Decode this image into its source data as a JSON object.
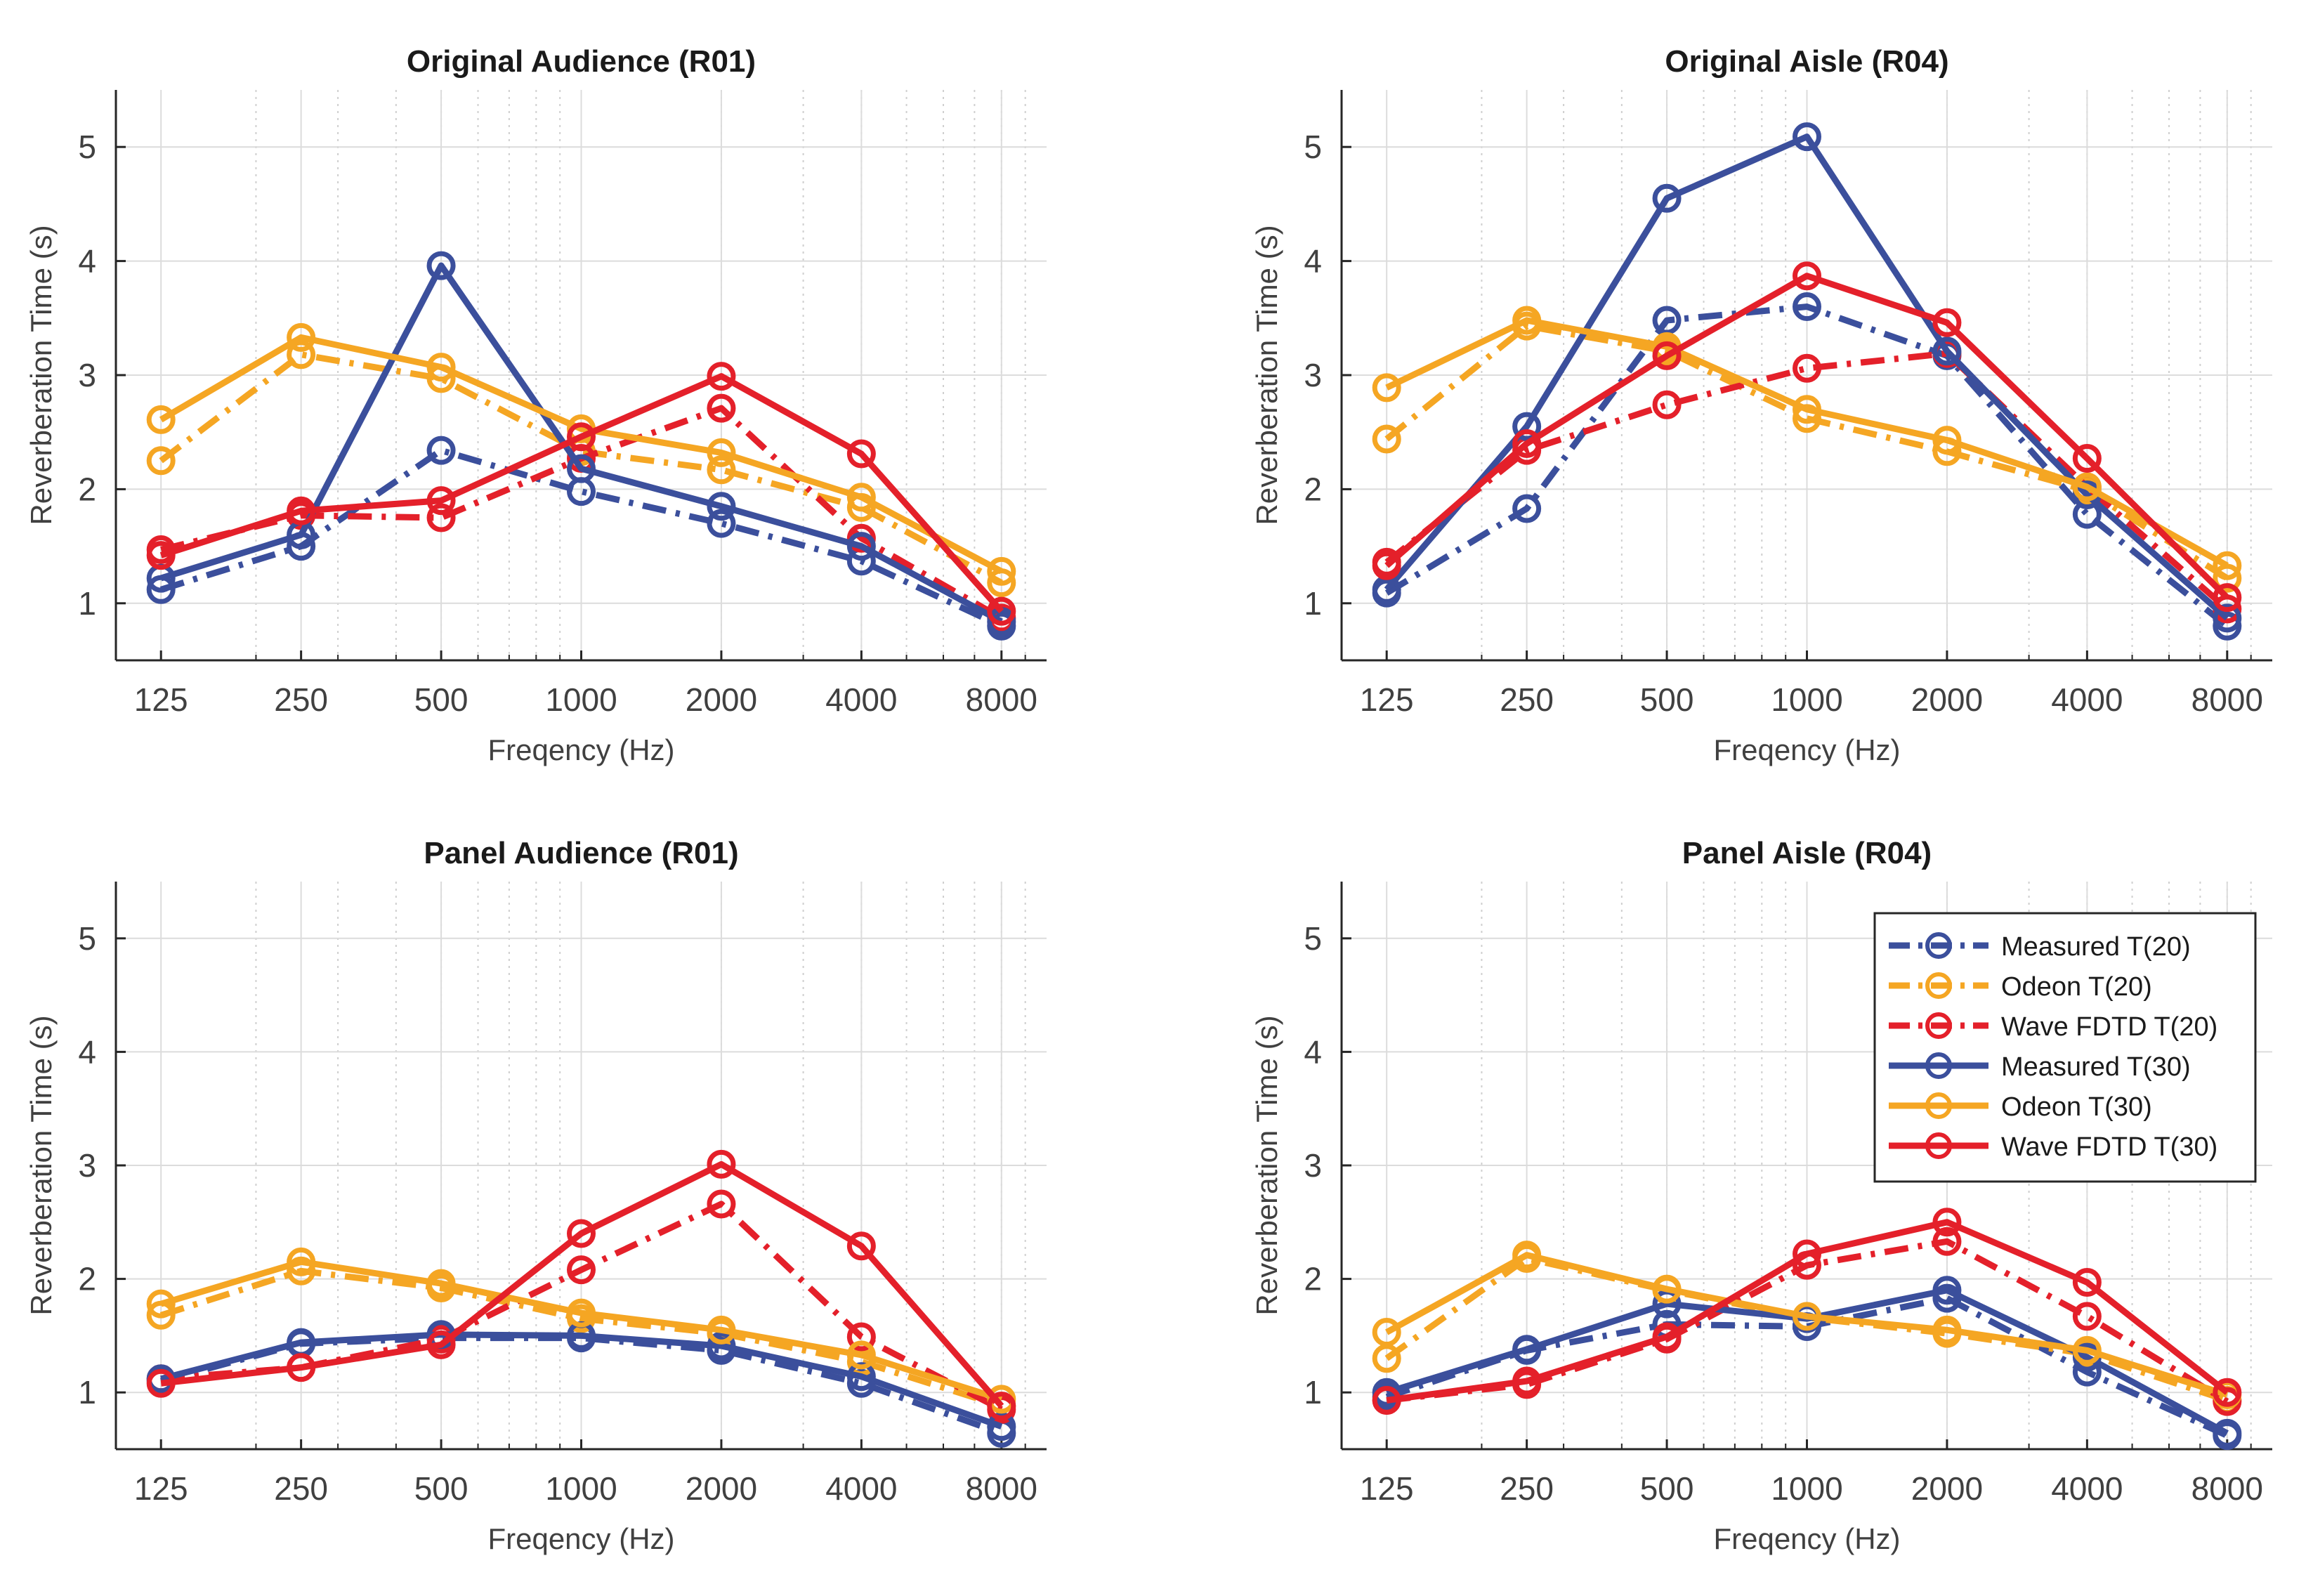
{
  "colors": {
    "measured": "#3B4F9C",
    "odeon": "#F5A623",
    "wave": "#E4202A",
    "axis": "#262626",
    "tick_label": "#404040",
    "grid": "#dcdcdc"
  },
  "legend": {
    "placement": "top-right",
    "entries": [
      {
        "label": "Measured T(20)",
        "series": "measured",
        "metric": "T20"
      },
      {
        "label": "Odeon T(20)",
        "series": "odeon",
        "metric": "T20"
      },
      {
        "label": "Wave FDTD T(20)",
        "series": "wave",
        "metric": "T20"
      },
      {
        "label": "Measured T(30)",
        "series": "measured",
        "metric": "T30"
      },
      {
        "label": "Odeon T(30)",
        "series": "odeon",
        "metric": "T30"
      },
      {
        "label": "Wave FDTD T(30)",
        "series": "wave",
        "metric": "T30"
      }
    ]
  },
  "chart_data": [
    {
      "type": "line",
      "title": "Original Audience (R01)",
      "xlabel": "Freqency (Hz)",
      "ylabel": "Reverberation Time (s)",
      "x_scale": "log",
      "categories": [
        "125",
        "250",
        "500",
        "1000",
        "2000",
        "4000",
        "8000"
      ],
      "x": [
        125,
        250,
        500,
        1000,
        2000,
        4000,
        8000
      ],
      "xlim": [
        100,
        10000
      ],
      "ylim": [
        0.5,
        5.5
      ],
      "yticks": [
        "1",
        "2",
        "3",
        "4",
        "5"
      ],
      "grid": true,
      "series": [
        {
          "name": "Measured T(20)",
          "color_key": "measured",
          "dash": "dashdot",
          "values": [
            1.12,
            1.5,
            2.34,
            1.98,
            1.7,
            1.37,
            0.8
          ]
        },
        {
          "name": "Odeon T(20)",
          "color_key": "odeon",
          "dash": "dashdot",
          "values": [
            2.25,
            3.18,
            2.97,
            2.33,
            2.17,
            1.84,
            1.18
          ]
        },
        {
          "name": "Wave FDTD T(20)",
          "color_key": "wave",
          "dash": "dashdot",
          "values": [
            1.47,
            1.77,
            1.75,
            2.27,
            2.71,
            1.57,
            0.87
          ]
        },
        {
          "name": "Measured T(30)",
          "color_key": "measured",
          "dash": "solid",
          "values": [
            1.22,
            1.6,
            3.96,
            2.18,
            1.85,
            1.5,
            0.84
          ]
        },
        {
          "name": "Odeon T(30)",
          "color_key": "odeon",
          "dash": "solid",
          "values": [
            2.61,
            3.33,
            3.07,
            2.53,
            2.32,
            1.93,
            1.28
          ]
        },
        {
          "name": "Wave FDTD T(30)",
          "color_key": "wave",
          "dash": "solid",
          "values": [
            1.42,
            1.81,
            1.9,
            2.46,
            2.99,
            2.31,
            0.93
          ]
        }
      ]
    },
    {
      "type": "line",
      "title": "Original Aisle (R04)",
      "xlabel": "Freqency (Hz)",
      "ylabel": "Reverberation Time (s)",
      "x_scale": "log",
      "categories": [
        "125",
        "250",
        "500",
        "1000",
        "2000",
        "4000",
        "8000"
      ],
      "x": [
        125,
        250,
        500,
        1000,
        2000,
        4000,
        8000
      ],
      "xlim": [
        100,
        10000
      ],
      "ylim": [
        0.5,
        5.5
      ],
      "yticks": [
        "1",
        "2",
        "3",
        "4",
        "5"
      ],
      "grid": true,
      "series": [
        {
          "name": "Measured T(20)",
          "color_key": "measured",
          "dash": "dashdot",
          "values": [
            1.09,
            1.83,
            3.48,
            3.6,
            3.17,
            1.78,
            0.8
          ]
        },
        {
          "name": "Odeon T(20)",
          "color_key": "odeon",
          "dash": "dashdot",
          "values": [
            2.44,
            3.43,
            3.21,
            2.62,
            2.33,
            1.99,
            1.22
          ]
        },
        {
          "name": "Wave FDTD T(20)",
          "color_key": "wave",
          "dash": "dashdot",
          "values": [
            1.36,
            2.34,
            2.74,
            3.06,
            3.19,
            2.02,
            0.95
          ]
        },
        {
          "name": "Measured T(30)",
          "color_key": "measured",
          "dash": "solid",
          "values": [
            1.12,
            2.55,
            4.55,
            5.09,
            3.21,
            1.95,
            0.87
          ]
        },
        {
          "name": "Odeon T(30)",
          "color_key": "odeon",
          "dash": "solid",
          "values": [
            2.89,
            3.48,
            3.25,
            2.7,
            2.43,
            2.02,
            1.33
          ]
        },
        {
          "name": "Wave FDTD T(30)",
          "color_key": "wave",
          "dash": "solid",
          "values": [
            1.33,
            2.4,
            3.17,
            3.87,
            3.46,
            2.27,
            1.05
          ]
        }
      ]
    },
    {
      "type": "line",
      "title": "Panel Audience (R01)",
      "xlabel": "Freqency (Hz)",
      "ylabel": "Reverberation Time (s)",
      "x_scale": "log",
      "categories": [
        "125",
        "250",
        "500",
        "1000",
        "2000",
        "4000",
        "8000"
      ],
      "x": [
        125,
        250,
        500,
        1000,
        2000,
        4000,
        8000
      ],
      "xlim": [
        100,
        10000
      ],
      "ylim": [
        0.5,
        5.5
      ],
      "yticks": [
        "1",
        "2",
        "3",
        "4",
        "5"
      ],
      "grid": true,
      "series": [
        {
          "name": "Measured T(20)",
          "color_key": "measured",
          "dash": "dashdot",
          "values": [
            1.1,
            1.43,
            1.48,
            1.48,
            1.37,
            1.08,
            0.64
          ]
        },
        {
          "name": "Odeon T(20)",
          "color_key": "odeon",
          "dash": "dashdot",
          "values": [
            1.68,
            2.07,
            1.92,
            1.65,
            1.52,
            1.27,
            0.88
          ]
        },
        {
          "name": "Wave FDTD T(20)",
          "color_key": "wave",
          "dash": "dashdot",
          "values": [
            1.12,
            1.22,
            1.47,
            2.08,
            2.66,
            1.49,
            0.85
          ]
        },
        {
          "name": "Measured T(30)",
          "color_key": "measured",
          "dash": "solid",
          "values": [
            1.12,
            1.44,
            1.51,
            1.5,
            1.41,
            1.14,
            0.7
          ]
        },
        {
          "name": "Odeon T(30)",
          "color_key": "odeon",
          "dash": "solid",
          "values": [
            1.78,
            2.15,
            1.96,
            1.7,
            1.55,
            1.33,
            0.94
          ]
        },
        {
          "name": "Wave FDTD T(30)",
          "color_key": "wave",
          "dash": "solid",
          "values": [
            1.08,
            1.22,
            1.42,
            2.4,
            3.01,
            2.29,
            0.88
          ]
        }
      ]
    },
    {
      "type": "line",
      "title": "Panel Aisle (R04)",
      "xlabel": "Freqency (Hz)",
      "ylabel": "Reverberation Time (s)",
      "x_scale": "log",
      "categories": [
        "125",
        "250",
        "500",
        "1000",
        "2000",
        "4000",
        "8000"
      ],
      "x": [
        125,
        250,
        500,
        1000,
        2000,
        4000,
        8000
      ],
      "xlim": [
        100,
        10000
      ],
      "ylim": [
        0.5,
        5.5
      ],
      "yticks": [
        "1",
        "2",
        "3",
        "4",
        "5"
      ],
      "grid": true,
      "series": [
        {
          "name": "Measured T(20)",
          "color_key": "measured",
          "dash": "dashdot",
          "values": [
            0.96,
            1.37,
            1.6,
            1.58,
            1.83,
            1.18,
            0.62
          ]
        },
        {
          "name": "Odeon T(20)",
          "color_key": "odeon",
          "dash": "dashdot",
          "values": [
            1.3,
            2.18,
            1.9,
            1.66,
            1.52,
            1.34,
            0.93
          ]
        },
        {
          "name": "Wave FDTD T(20)",
          "color_key": "wave",
          "dash": "dashdot",
          "values": [
            0.93,
            1.07,
            1.47,
            2.12,
            2.33,
            1.67,
            0.92
          ]
        },
        {
          "name": "Measured T(30)",
          "color_key": "measured",
          "dash": "solid",
          "values": [
            1.0,
            1.38,
            1.78,
            1.65,
            1.9,
            1.31,
            0.64
          ]
        },
        {
          "name": "Odeon T(30)",
          "color_key": "odeon",
          "dash": "solid",
          "values": [
            1.53,
            2.21,
            1.91,
            1.67,
            1.55,
            1.37,
            0.98
          ]
        },
        {
          "name": "Wave FDTD T(30)",
          "color_key": "wave",
          "dash": "solid",
          "values": [
            0.93,
            1.1,
            1.49,
            2.22,
            2.5,
            1.97,
            1.0
          ]
        }
      ]
    }
  ]
}
